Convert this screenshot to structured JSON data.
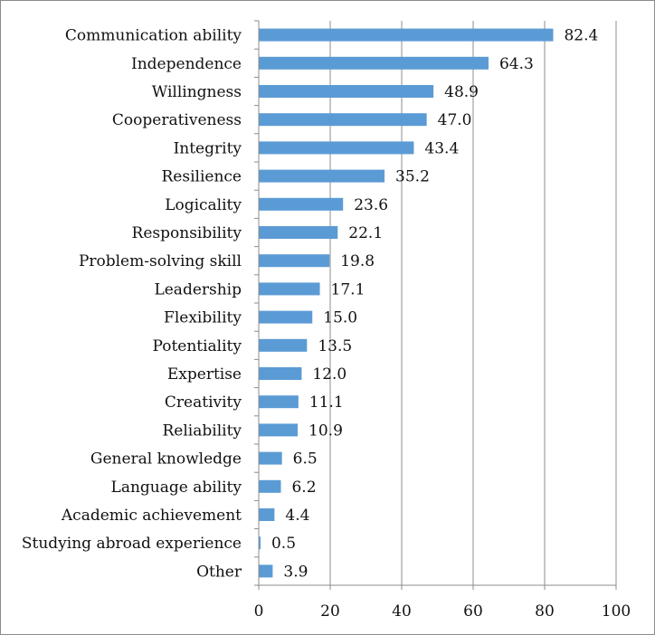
{
  "chart_data": {
    "type": "bar",
    "orientation": "horizontal",
    "title": "",
    "xlabel": "",
    "ylabel": "",
    "xlim": [
      0,
      100
    ],
    "xticks": [
      "0",
      "20",
      "40",
      "60",
      "80",
      "100"
    ],
    "grid": "vertical",
    "legend": "none",
    "bar_color": "#5b9bd5",
    "categories": [
      "Communication ability",
      "Independence",
      "Willingness",
      "Cooperativeness",
      "Integrity",
      "Resilience",
      "Logicality",
      "Responsibility",
      "Problem-solving skill",
      "Leadership",
      "Flexibility",
      "Potentiality",
      "Expertise",
      "Creativity",
      "Reliability",
      "General knowledge",
      "Language ability",
      "Academic achievement",
      "Studying abroad experience",
      "Other"
    ],
    "values": [
      82.4,
      64.3,
      48.9,
      47.0,
      43.4,
      35.2,
      23.6,
      22.1,
      19.8,
      17.1,
      15.0,
      13.5,
      12.0,
      11.1,
      10.9,
      6.5,
      6.2,
      4.4,
      0.5,
      3.9
    ],
    "value_labels": [
      "82.4",
      "64.3",
      "48.9",
      "47.0",
      "43.4",
      "35.2",
      "23.6",
      "22.1",
      "19.8",
      "17.1",
      "15.0",
      "13.5",
      "12.0",
      "11.1",
      "10.9",
      "6.5",
      "6.2",
      "4.4",
      "0.5",
      "3.9"
    ]
  }
}
